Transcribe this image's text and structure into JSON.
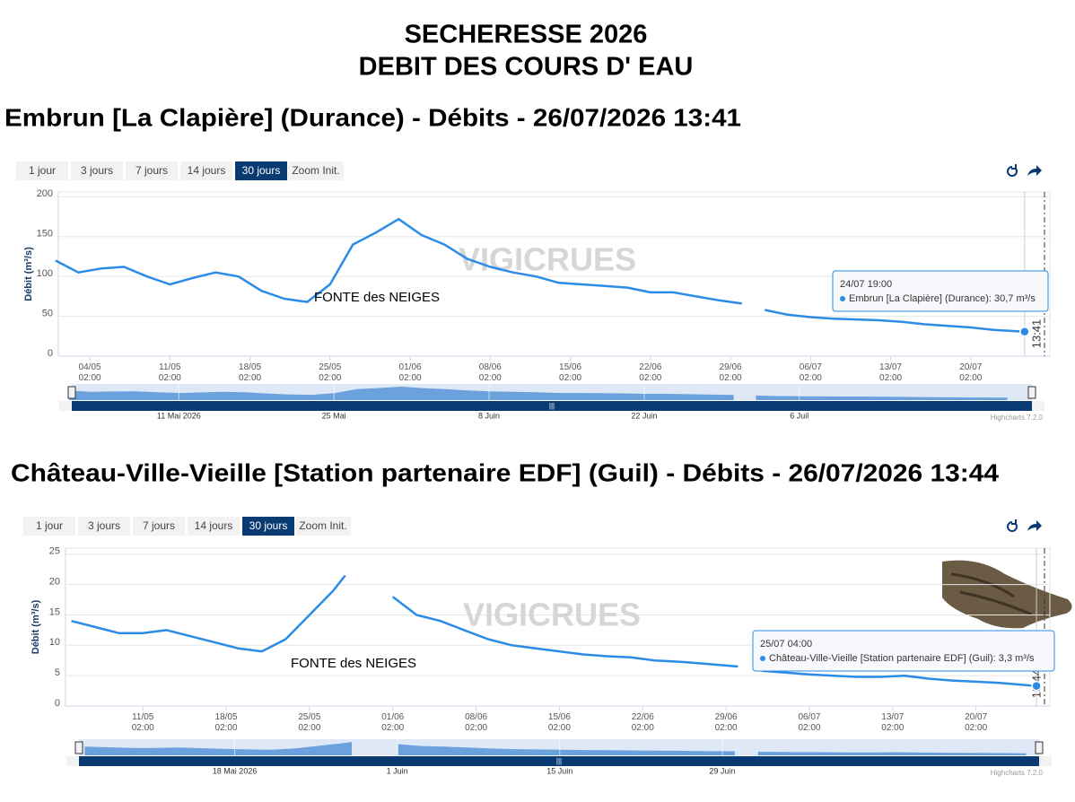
{
  "page_title": [
    "SECHERESSE 2026",
    "DEBIT DES COURS D' EAU"
  ],
  "chart_data": [
    {
      "type": "line",
      "title": "Embrun [La Clapière] (Durance) - Débits - 26/07/2026 13:41",
      "buttons": [
        "1 jour",
        "3 jours",
        "7 jours",
        "14 jours",
        "30 jours"
      ],
      "selected_button": 4,
      "zoom_label": "Zoom Init.",
      "y_label": "Débit (m³/s)",
      "annotation": "FONTE des NEIGES",
      "watermark": "VIGICRUES",
      "color": "#2b8be6",
      "x": [
        "01/05 02:00",
        "03/05 02:00",
        "05/05 02:00",
        "07/05 02:00",
        "09/05 02:00",
        "11/05 02:00",
        "13/05 02:00",
        "15/05 02:00",
        "17/05 02:00",
        "19/05 02:00",
        "21/05 02:00",
        "23/05 02:00",
        "25/05 02:00",
        "27/05 02:00",
        "29/05 02:00",
        "31/05 02:00",
        "02/06 02:00",
        "04/06 02:00",
        "06/06 02:00",
        "08/06 02:00",
        "10/06 02:00",
        "12/06 02:00",
        "14/06 02:00",
        "16/06 02:00",
        "18/06 02:00",
        "20/06 02:00",
        "22/06 02:00",
        "24/06 02:00",
        "26/06 02:00",
        "28/06 02:00",
        "30/06 02:00",
        "01/07 02:00",
        "02/07 02:00",
        "04/07 02:00",
        "06/07 02:00",
        "08/07 02:00",
        "10/07 02:00",
        "12/07 02:00",
        "14/07 02:00",
        "16/07 02:00",
        "18/07 02:00",
        "20/07 02:00",
        "22/07 02:00",
        "24/07 19:00"
      ],
      "values": [
        120,
        105,
        110,
        112,
        100,
        90,
        98,
        105,
        100,
        82,
        72,
        68,
        90,
        140,
        155,
        172,
        152,
        140,
        122,
        112,
        105,
        100,
        92,
        90,
        88,
        86,
        80,
        80,
        75,
        70,
        66,
        null,
        58,
        52,
        49,
        47,
        46,
        45,
        43,
        40,
        38,
        36,
        33,
        30.7
      ],
      "xlim": [
        "01/05 08:00",
        "27/07 00:00"
      ],
      "xticks": [
        "04/05 02:00",
        "11/05 02:00",
        "18/05 02:00",
        "25/05 02:00",
        "01/06 02:00",
        "08/06 02:00",
        "15/06 02:00",
        "22/06 02:00",
        "29/06 02:00",
        "06/07 02:00",
        "13/07 02:00",
        "20/07 02:00"
      ],
      "ylim": [
        0,
        206
      ],
      "yticks": [
        0,
        50,
        100,
        150,
        200
      ],
      "grid": true,
      "tooltip": "Embrun [La Clapière] (Durance): 30,7 m³/s",
      "now_label": "13:41",
      "navigator_labels": [
        {
          "value": "11/05 00:00",
          "label": "11 Mai 2026"
        },
        {
          "value": "25/05 00:00",
          "label": "25 Mai"
        },
        {
          "value": "08/06 00:00",
          "label": "8 Juin"
        },
        {
          "value": "22/06 00:00",
          "label": "22 Juin"
        },
        {
          "value": "06/07 00:00",
          "label": "6 Juil"
        }
      ],
      "credits": "Highcharts 7.2.0"
    },
    {
      "type": "line",
      "title": "Château-Ville-Vieille [Station partenaire EDF] (Guil) - Débits - 26/07/2026 13:44",
      "buttons": [
        "1 jour",
        "3 jours",
        "7 jours",
        "14 jours",
        "30 jours"
      ],
      "selected_button": 4,
      "zoom_label": "Zoom Init.",
      "y_label": "Débit (m³/s)",
      "annotation": "FONTE des NEIGES",
      "watermark": "VIGICRUES",
      "color": "#2b8be6",
      "x": [
        "05/05 02:00",
        "07/05 02:00",
        "09/05 02:00",
        "11/05 02:00",
        "13/05 02:00",
        "15/05 02:00",
        "17/05 02:00",
        "19/05 02:00",
        "21/05 02:00",
        "23/05 02:00",
        "25/05 02:00",
        "27/05 02:00",
        "28/05 02:00",
        "30/05 02:00",
        "01/06 02:00",
        "03/06 02:00",
        "05/06 02:00",
        "07/06 02:00",
        "09/06 02:00",
        "11/06 02:00",
        "13/06 02:00",
        "15/06 02:00",
        "17/06 02:00",
        "19/06 02:00",
        "21/06 02:00",
        "23/06 02:00",
        "25/06 02:00",
        "27/06 02:00",
        "30/06 02:00",
        "01/07 02:00",
        "02/07 02:00",
        "04/07 02:00",
        "06/07 02:00",
        "08/07 02:00",
        "10/07 02:00",
        "12/07 02:00",
        "14/07 02:00",
        "16/07 02:00",
        "18/07 02:00",
        "20/07 02:00",
        "22/07 02:00",
        "25/07 04:00"
      ],
      "values": [
        14,
        13,
        12,
        12,
        12.5,
        11.5,
        10.5,
        9.5,
        9,
        11,
        15,
        19,
        21.5,
        null,
        18,
        15,
        14,
        12.5,
        11,
        10,
        9.5,
        9,
        8.5,
        8.2,
        8,
        7.5,
        7.3,
        7,
        6.5,
        null,
        5.8,
        5.5,
        5.2,
        5,
        4.8,
        4.8,
        5,
        4.5,
        4.2,
        4,
        3.8,
        3.3
      ],
      "xlim": [
        "04/05 14:00",
        "26/07 07:00"
      ],
      "xticks": [
        "11/05 02:00",
        "18/05 02:00",
        "25/05 02:00",
        "01/06 02:00",
        "08/06 02:00",
        "15/06 02:00",
        "22/06 02:00",
        "29/06 02:00",
        "06/07 02:00",
        "13/07 02:00",
        "20/07 02:00"
      ],
      "ylim": [
        0,
        26
      ],
      "yticks": [
        0,
        5,
        10,
        15,
        20,
        25
      ],
      "grid": true,
      "tooltip": "Château-Ville-Vieille [Station partenaire EDF] (Guil): 3,3 m³/s",
      "now_label": "13:44",
      "navigator_labels": [
        {
          "value": "18/05 00:00",
          "label": "18 Mai 2026"
        },
        {
          "value": "01/06 00:00",
          "label": "1 Juin"
        },
        {
          "value": "15/06 00:00",
          "label": "15 Juin"
        },
        {
          "value": "29/06 00:00",
          "label": "29 Juin"
        }
      ],
      "credits": "Highcharts 7.2.0"
    }
  ]
}
